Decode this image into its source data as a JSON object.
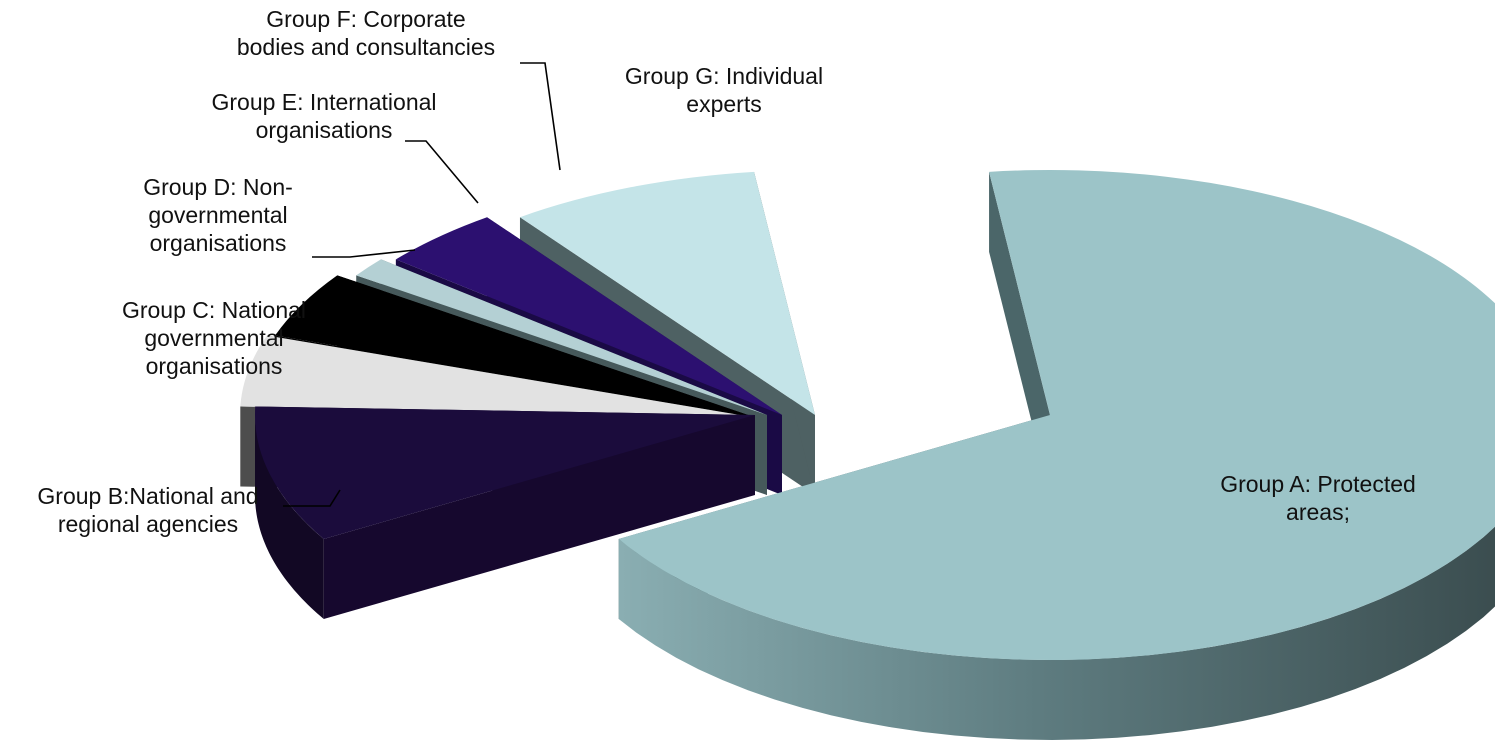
{
  "chart_data": {
    "type": "pie",
    "style": "3d-exploded",
    "title": "",
    "slices": [
      {
        "label": "Group A: Protected areas;",
        "value": 68.5,
        "color": "#9cc4c8"
      },
      {
        "label": "Group B:National and regional agencies",
        "value": 9.0,
        "color": "#1b0c3c"
      },
      {
        "label": "Group C: National governmental organisations",
        "value": 4.7,
        "color": "#e2e2e2"
      },
      {
        "label": "Group D: Non-governmental organisations",
        "value": 4.4,
        "color": "#000000"
      },
      {
        "label": "Group E: International organisations",
        "value": 1.3,
        "color": "#b4d0d4"
      },
      {
        "label": "Group F: Corporate bodies and consultancies",
        "value": 4.0,
        "color": "#2c1070"
      },
      {
        "label": "Group G: Individual experts",
        "value": 8.1,
        "color": "#c4e4e8"
      }
    ],
    "labels": [
      {
        "lines": [
          "Group A: Protected",
          "areas;"
        ]
      },
      {
        "lines": [
          "Group B:National and",
          "regional agencies"
        ]
      },
      {
        "lines": [
          "Group C: National",
          "governmental",
          "organisations"
        ]
      },
      {
        "lines": [
          "Group D: Non-",
          "governmental",
          "organisations"
        ]
      },
      {
        "lines": [
          "Group E: International",
          "organisations"
        ]
      },
      {
        "lines": [
          "Group F: Corporate",
          "bodies and consultancies"
        ]
      },
      {
        "lines": [
          "Group G: Individual",
          "experts"
        ]
      }
    ],
    "legend": "none"
  }
}
